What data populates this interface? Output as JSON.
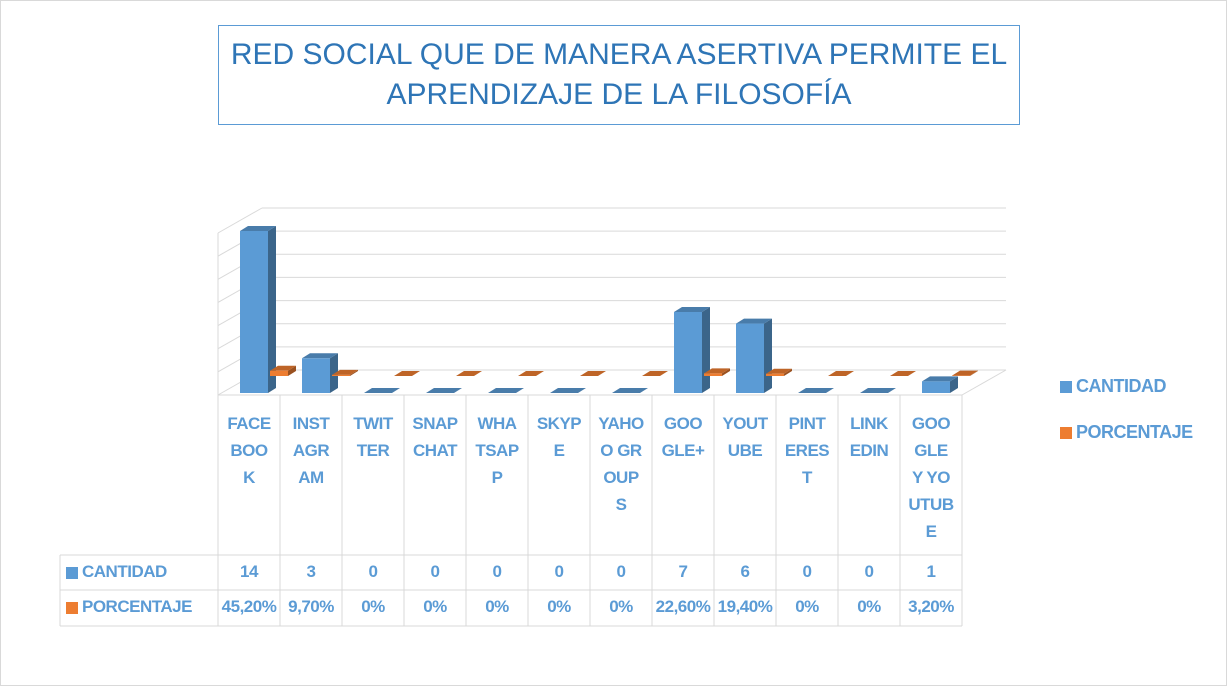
{
  "chart_data": {
    "type": "bar3d",
    "title": "RED SOCIAL QUE DE MANERA ASERTIVA PERMITE EL APRENDIZAJE DE LA FILOSOFÍA",
    "categories": [
      "FACEBOOK",
      "INSTAGRAM",
      "TWITTER",
      "SNAPCHAT",
      "WHATSAPP",
      "SKYPE",
      "YAHOO GROUPS",
      "GOOGLE+",
      "YOUTUBE",
      "PINTEREST",
      "LINKEDIN",
      "GOOGLE Y YOUTUBE"
    ],
    "series": [
      {
        "name": "CANTIDAD",
        "color": "#5b9bd5",
        "values": [
          14,
          3,
          0,
          0,
          0,
          0,
          0,
          7,
          6,
          0,
          0,
          1
        ]
      },
      {
        "name": "PORCENTAJE",
        "color": "#ed7d31",
        "values": [
          0.452,
          0.097,
          0,
          0,
          0,
          0,
          0,
          0.226,
          0.194,
          0,
          0,
          0.032
        ],
        "value_labels": [
          "45,20%",
          "9,70%",
          "0%",
          "0%",
          "0%",
          "0%",
          "0%",
          "22,60%",
          "19,40%",
          "0%",
          "0%",
          "3,20%"
        ]
      }
    ],
    "ylim": [
      0,
      14
    ],
    "yticks": [
      0,
      2,
      4,
      6,
      8,
      10,
      12,
      14
    ],
    "grid": true,
    "legend": "right"
  }
}
